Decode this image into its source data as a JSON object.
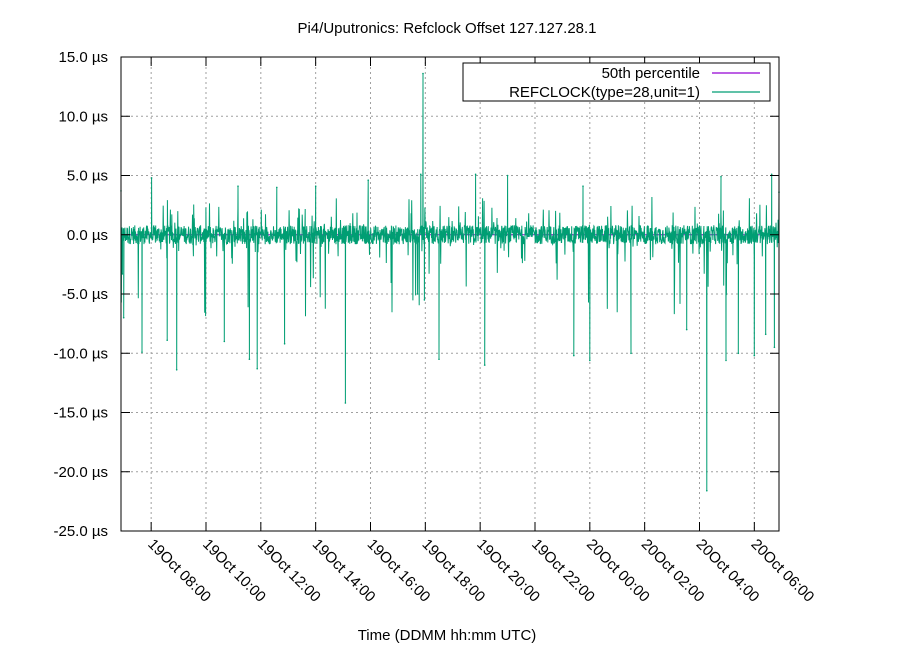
{
  "chart_data": {
    "type": "line",
    "title": "Pi4/Uputronics: Refclock Offset 127.127.28.1",
    "xlabel": "Time (DDMM hh:mm UTC)",
    "ylabel": "",
    "ylim": [
      -25.0,
      15.0
    ],
    "yticks": [
      {
        "value": 15.0,
        "label": "15.0 µs"
      },
      {
        "value": 10.0,
        "label": "10.0 µs"
      },
      {
        "value": 5.0,
        "label": "5.0 µs"
      },
      {
        "value": 0.0,
        "label": "0.0 µs"
      },
      {
        "value": -5.0,
        "label": "-5.0 µs"
      },
      {
        "value": -10.0,
        "label": "-10.0 µs"
      },
      {
        "value": -15.0,
        "label": "-15.0 µs"
      },
      {
        "value": -20.0,
        "label": "-20.0 µs"
      },
      {
        "value": -25.0,
        "label": "-25.0 µs"
      }
    ],
    "xlim": [
      "19Oct 06:54",
      "20Oct 06:54"
    ],
    "xticks": [
      {
        "value": "19Oct 08:00",
        "label": "19Oct 08:00"
      },
      {
        "value": "19Oct 10:00",
        "label": "19Oct 10:00"
      },
      {
        "value": "19Oct 12:00",
        "label": "19Oct 12:00"
      },
      {
        "value": "19Oct 14:00",
        "label": "19Oct 14:00"
      },
      {
        "value": "19Oct 16:00",
        "label": "19Oct 16:00"
      },
      {
        "value": "19Oct 18:00",
        "label": "19Oct 18:00"
      },
      {
        "value": "19Oct 20:00",
        "label": "19Oct 20:00"
      },
      {
        "value": "19Oct 22:00",
        "label": "19Oct 22:00"
      },
      {
        "value": "20Oct 00:00",
        "label": "20Oct 00:00"
      },
      {
        "value": "20Oct 02:00",
        "label": "20Oct 02:00"
      },
      {
        "value": "20Oct 04:00",
        "label": "20Oct 04:00"
      },
      {
        "value": "20Oct 06:00",
        "label": "20Oct 06:00"
      }
    ],
    "grid": true,
    "legend_position": "top-right",
    "series": [
      {
        "name": "50th percentile",
        "color": "#9400d3",
        "values": [
          {
            "x": "19Oct 06:54",
            "y": 0.0
          },
          {
            "x": "20Oct 06:54",
            "y": 0.0
          }
        ]
      },
      {
        "name": "REFCLOCK(type=28,unit=1)",
        "color": "#009e73",
        "values": [
          {
            "x": "19Oct 06:54",
            "y": 3.7
          },
          {
            "x": "19Oct 06:57",
            "y": -3.3
          },
          {
            "x": "19Oct 07:00",
            "y": -7.0
          },
          {
            "x": "19Oct 07:40",
            "y": -9.9
          },
          {
            "x": "19Oct 08:01",
            "y": 4.8
          },
          {
            "x": "19Oct 08:35",
            "y": -8.9
          },
          {
            "x": "19Oct 08:56",
            "y": -11.4
          },
          {
            "x": "19Oct 10:40",
            "y": -9.0
          },
          {
            "x": "19Oct 11:10",
            "y": 4.1
          },
          {
            "x": "19Oct 11:35",
            "y": -10.5
          },
          {
            "x": "19Oct 11:52",
            "y": -11.3
          },
          {
            "x": "19Oct 12:35",
            "y": 4.0
          },
          {
            "x": "19Oct 12:52",
            "y": -9.2
          },
          {
            "x": "19Oct 14:00",
            "y": 4.1
          },
          {
            "x": "19Oct 15:05",
            "y": -14.2
          },
          {
            "x": "19Oct 15:55",
            "y": 4.6
          },
          {
            "x": "19Oct 17:43",
            "y": -5.0
          },
          {
            "x": "19Oct 17:50",
            "y": 5.1
          },
          {
            "x": "19Oct 17:55",
            "y": 13.6
          },
          {
            "x": "19Oct 17:58",
            "y": -5.5
          },
          {
            "x": "19Oct 18:30",
            "y": -10.5
          },
          {
            "x": "19Oct 19:50",
            "y": 5.1
          },
          {
            "x": "19Oct 20:10",
            "y": -11.0
          },
          {
            "x": "19Oct 21:00",
            "y": 5.0
          },
          {
            "x": "19Oct 23:25",
            "y": -10.2
          },
          {
            "x": "19Oct 23:45",
            "y": 4.1
          },
          {
            "x": "20Oct 00:00",
            "y": -10.6
          },
          {
            "x": "20Oct 01:30",
            "y": -10.0
          },
          {
            "x": "20Oct 03:32",
            "y": -8.0
          },
          {
            "x": "20Oct 04:16",
            "y": -21.6
          },
          {
            "x": "20Oct 04:47",
            "y": 4.9
          },
          {
            "x": "20Oct 04:58",
            "y": -10.6
          },
          {
            "x": "20Oct 05:25",
            "y": -10.0
          },
          {
            "x": "20Oct 06:00",
            "y": -10.2
          },
          {
            "x": "20Oct 06:25",
            "y": -8.4
          },
          {
            "x": "20Oct 06:38",
            "y": 5.1
          },
          {
            "x": "20Oct 06:44",
            "y": -9.5
          },
          {
            "x": "20Oct 06:54",
            "y": 3.6
          }
        ]
      }
    ]
  }
}
